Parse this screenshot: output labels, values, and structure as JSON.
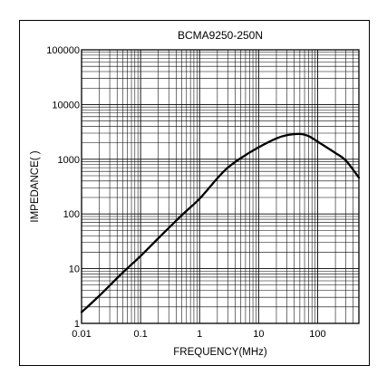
{
  "chart_data": {
    "type": "line",
    "title": "BCMA9250-250N",
    "xlabel": "FREQUENCY(MHz)",
    "ylabel": "IMPEDANCE(   )",
    "x_scale": "log",
    "y_scale": "log",
    "xlim": [
      0.01,
      500
    ],
    "ylim": [
      1,
      100000
    ],
    "grid": true,
    "x_tick_labels": [
      "0.01",
      "0.1",
      "1",
      "10",
      "100"
    ],
    "x_tick_values": [
      0.01,
      0.1,
      1,
      10,
      100
    ],
    "y_tick_labels": [
      "1",
      "10",
      "100",
      "1000",
      "10000",
      "100000"
    ],
    "y_tick_values": [
      1,
      10,
      100,
      1000,
      10000,
      100000
    ],
    "series": [
      {
        "color": "#000000",
        "x": [
          0.01,
          0.02,
          0.05,
          0.1,
          0.2,
          0.5,
          1,
          2,
          3,
          5,
          10,
          20,
          30,
          50,
          70,
          100,
          200,
          300,
          500
        ],
        "y": [
          1.6,
          3.2,
          8.5,
          17,
          36,
          95,
          190,
          450,
          700,
          1050,
          1650,
          2400,
          2750,
          2900,
          2650,
          2100,
          1300,
          950,
          460
        ]
      }
    ]
  }
}
